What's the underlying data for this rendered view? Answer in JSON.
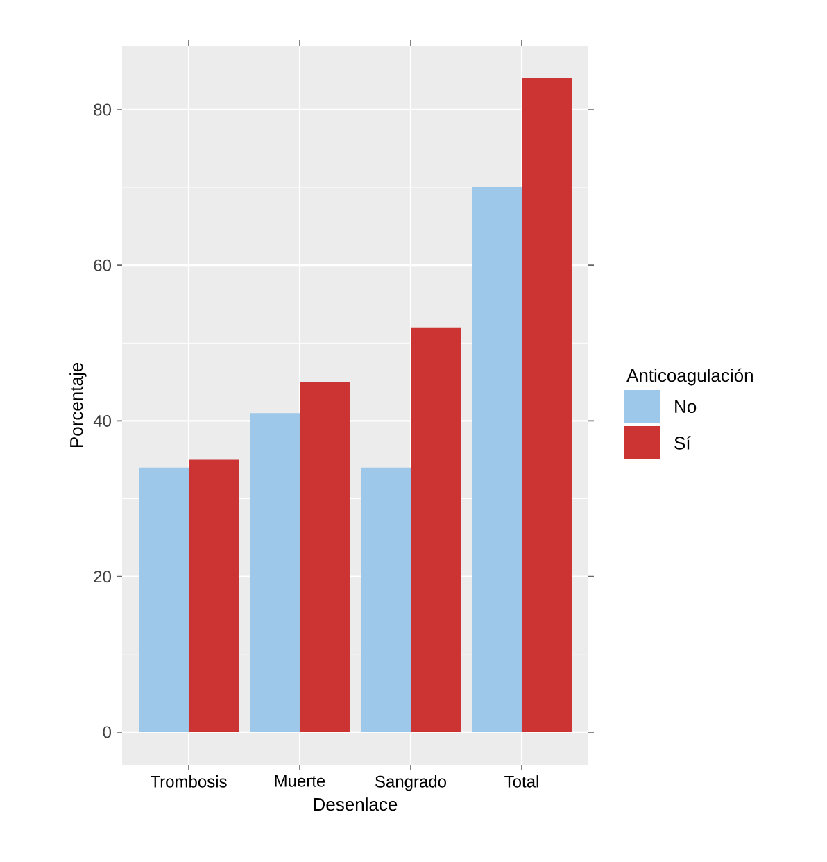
{
  "chart_data": {
    "type": "bar",
    "xlabel": "Desenlace",
    "ylabel": "Porcentaje",
    "legend_title": "Anticoagulación",
    "categories": [
      "Trombosis",
      "Muerte",
      "Sangrado",
      "Total"
    ],
    "series": [
      {
        "name": "No",
        "color": "#9ec8ea",
        "values": [
          34,
          41,
          34,
          70
        ]
      },
      {
        "name": "Sí",
        "color": "#cc3333",
        "values": [
          35,
          45,
          52,
          84
        ]
      }
    ],
    "ylim": [
      -4.2,
      88.2
    ],
    "yticks": [
      0,
      20,
      40,
      60,
      80
    ],
    "grid": true,
    "legend": "right"
  }
}
